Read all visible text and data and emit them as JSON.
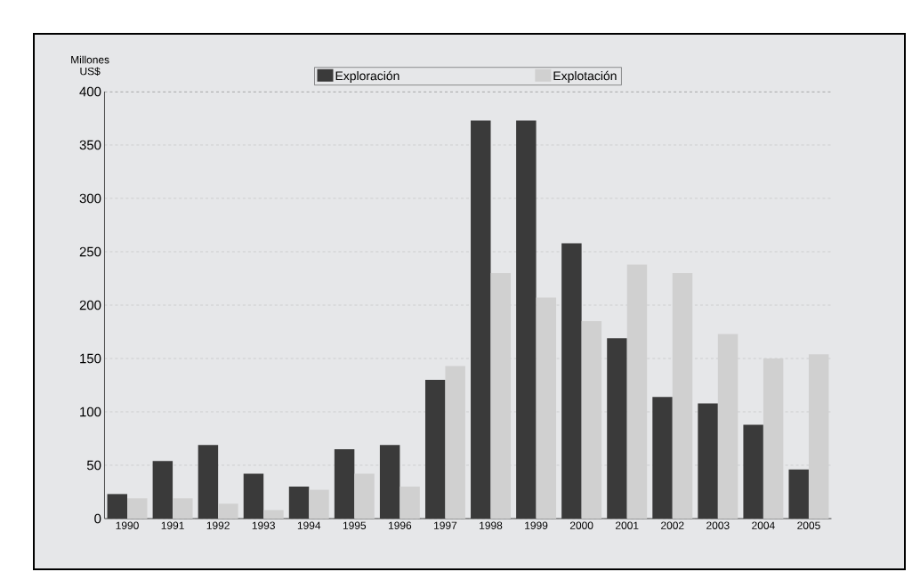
{
  "chart_data": {
    "type": "bar",
    "ylabel": "Millones US$",
    "categories": [
      "1990",
      "1991",
      "1992",
      "1993",
      "1994",
      "1995",
      "1996",
      "1997",
      "1998",
      "1999",
      "2000",
      "2001",
      "2002",
      "2003",
      "2004",
      "2005"
    ],
    "series": [
      {
        "name": "Exploración",
        "color": "#3a3a3a",
        "values": [
          23,
          54,
          69,
          42,
          30,
          65,
          69,
          130,
          373,
          373,
          258,
          169,
          114,
          108,
          88,
          46
        ]
      },
      {
        "name": "Explotación",
        "color": "#d0d0d0",
        "values": [
          19,
          19,
          14,
          8,
          27,
          42,
          30,
          143,
          230,
          207,
          185,
          238,
          230,
          173,
          150,
          154
        ]
      }
    ],
    "ylim": [
      0,
      400
    ],
    "yticks": [
      0,
      50,
      100,
      150,
      200,
      250,
      300,
      350,
      400
    ],
    "grid": "y",
    "legend": "top"
  }
}
